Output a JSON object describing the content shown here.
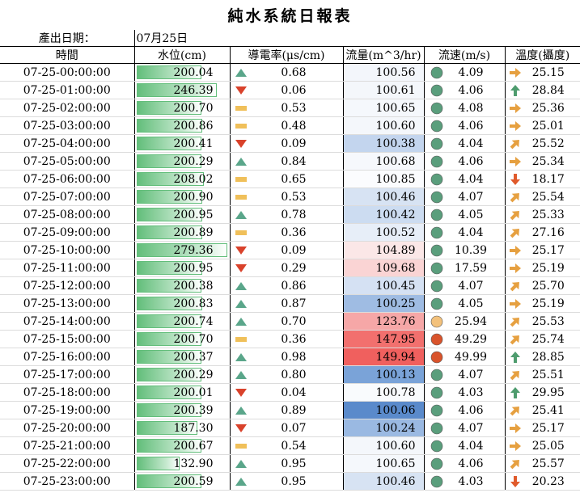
{
  "title": "純水系統日報表",
  "date_label": "產出日期：",
  "date_value": "07月25日",
  "headers": {
    "time": "時間",
    "level": "水位(cm)",
    "conductivity": "導電率(μs/cm)",
    "flow": "流量(m^3/hr)",
    "speed": "流速(m/s)",
    "temp": "溫度(攝度)"
  },
  "colors": {
    "level_bar": "#63be7b",
    "up": "#5aa68a",
    "down": "#d9422b",
    "neutral": "#f0c05a",
    "circle_green": "#5a9e7c",
    "circle_yellow": "#f3c17b",
    "circle_red": "#d9532b",
    "arrow_orange": "#e6a040",
    "arrow_green": "#4e9c6e",
    "arrow_red": "#e05a2b"
  },
  "rows": [
    {
      "time": "07-25-00:00:00",
      "level": "200.04",
      "cond": "0.68",
      "cond_icon": "up",
      "flow": "100.56",
      "flow_bg": "#f3f6fb",
      "speed": "4.09",
      "speed_icon": "green",
      "temp": "25.15",
      "temp_icon": "right"
    },
    {
      "time": "07-25-01:00:00",
      "level": "246.39",
      "cond": "0.06",
      "cond_icon": "down",
      "flow": "100.61",
      "flow_bg": "#f4f7fb",
      "speed": "4.06",
      "speed_icon": "green",
      "temp": "28.84",
      "temp_icon": "up"
    },
    {
      "time": "07-25-02:00:00",
      "level": "200.70",
      "cond": "0.53",
      "cond_icon": "neutral",
      "flow": "100.65",
      "flow_bg": "#f5f8fc",
      "speed": "4.08",
      "speed_icon": "green",
      "temp": "25.36",
      "temp_icon": "right"
    },
    {
      "time": "07-25-03:00:00",
      "level": "200.86",
      "cond": "0.48",
      "cond_icon": "neutral",
      "flow": "100.60",
      "flow_bg": "#f4f7fb",
      "speed": "4.06",
      "speed_icon": "green",
      "temp": "25.01",
      "temp_icon": "right"
    },
    {
      "time": "07-25-04:00:00",
      "level": "200.41",
      "cond": "0.09",
      "cond_icon": "down",
      "flow": "100.38",
      "flow_bg": "#c3d5ee",
      "speed": "4.04",
      "speed_icon": "green",
      "temp": "25.52",
      "temp_icon": "upright"
    },
    {
      "time": "07-25-05:00:00",
      "level": "200.29",
      "cond": "0.84",
      "cond_icon": "up",
      "flow": "100.68",
      "flow_bg": "#f6f8fc",
      "speed": "4.06",
      "speed_icon": "green",
      "temp": "25.34",
      "temp_icon": "right"
    },
    {
      "time": "07-25-06:00:00",
      "level": "208.02",
      "cond": "0.65",
      "cond_icon": "neutral",
      "flow": "100.85",
      "flow_bg": "#fbfcfe",
      "speed": "4.04",
      "speed_icon": "green",
      "temp": "18.17",
      "temp_icon": "down"
    },
    {
      "time": "07-25-07:00:00",
      "level": "200.90",
      "cond": "0.53",
      "cond_icon": "neutral",
      "flow": "100.46",
      "flow_bg": "#d7e3f3",
      "speed": "4.07",
      "speed_icon": "green",
      "temp": "25.54",
      "temp_icon": "upright"
    },
    {
      "time": "07-25-08:00:00",
      "level": "200.95",
      "cond": "0.78",
      "cond_icon": "up",
      "flow": "100.42",
      "flow_bg": "#ccdcf1",
      "speed": "4.05",
      "speed_icon": "green",
      "temp": "25.33",
      "temp_icon": "upright"
    },
    {
      "time": "07-25-09:00:00",
      "level": "200.89",
      "cond": "0.36",
      "cond_icon": "neutral",
      "flow": "100.52",
      "flow_bg": "#e7eef8",
      "speed": "4.04",
      "speed_icon": "green",
      "temp": "27.16",
      "temp_icon": "upright"
    },
    {
      "time": "07-25-10:00:00",
      "level": "279.36",
      "cond": "0.09",
      "cond_icon": "down",
      "flow": "104.89",
      "flow_bg": "#fbe7e7",
      "speed": "10.39",
      "speed_icon": "green",
      "temp": "25.17",
      "temp_icon": "right"
    },
    {
      "time": "07-25-11:00:00",
      "level": "200.95",
      "cond": "0.29",
      "cond_icon": "down",
      "flow": "109.68",
      "flow_bg": "#fad4d4",
      "speed": "17.59",
      "speed_icon": "green",
      "temp": "25.19",
      "temp_icon": "right"
    },
    {
      "time": "07-25-12:00:00",
      "level": "200.38",
      "cond": "0.86",
      "cond_icon": "up",
      "flow": "100.45",
      "flow_bg": "#d5e1f3",
      "speed": "4.07",
      "speed_icon": "green",
      "temp": "25.70",
      "temp_icon": "upright"
    },
    {
      "time": "07-25-13:00:00",
      "level": "200.83",
      "cond": "0.87",
      "cond_icon": "up",
      "flow": "100.25",
      "flow_bg": "#9fbce3",
      "speed": "4.05",
      "speed_icon": "green",
      "temp": "25.19",
      "temp_icon": "right"
    },
    {
      "time": "07-25-14:00:00",
      "level": "200.74",
      "cond": "0.70",
      "cond_icon": "up",
      "flow": "123.76",
      "flow_bg": "#f6a7a7",
      "speed": "25.94",
      "speed_icon": "yellow",
      "temp": "25.53",
      "temp_icon": "upright"
    },
    {
      "time": "07-25-15:00:00",
      "level": "200.70",
      "cond": "0.36",
      "cond_icon": "neutral",
      "flow": "147.95",
      "flow_bg": "#f2706e",
      "speed": "49.29",
      "speed_icon": "red",
      "temp": "25.74",
      "temp_icon": "upright"
    },
    {
      "time": "07-25-16:00:00",
      "level": "200.37",
      "cond": "0.98",
      "cond_icon": "up",
      "flow": "149.94",
      "flow_bg": "#f0605e",
      "speed": "49.99",
      "speed_icon": "red",
      "temp": "28.85",
      "temp_icon": "up"
    },
    {
      "time": "07-25-17:00:00",
      "level": "200.29",
      "cond": "0.80",
      "cond_icon": "up",
      "flow": "100.13",
      "flow_bg": "#7aa3d8",
      "speed": "4.07",
      "speed_icon": "green",
      "temp": "25.51",
      "temp_icon": "upright"
    },
    {
      "time": "07-25-18:00:00",
      "level": "200.01",
      "cond": "0.04",
      "cond_icon": "down",
      "flow": "100.78",
      "flow_bg": "#f9fbfd",
      "speed": "4.03",
      "speed_icon": "green",
      "temp": "29.95",
      "temp_icon": "up"
    },
    {
      "time": "07-25-19:00:00",
      "level": "200.39",
      "cond": "0.89",
      "cond_icon": "up",
      "flow": "100.06",
      "flow_bg": "#5a8acb",
      "speed": "4.06",
      "speed_icon": "green",
      "temp": "25.41",
      "temp_icon": "upright"
    },
    {
      "time": "07-25-20:00:00",
      "level": "187.30",
      "cond": "0.07",
      "cond_icon": "down",
      "flow": "100.24",
      "flow_bg": "#9ab9e2",
      "speed": "4.07",
      "speed_icon": "green",
      "temp": "25.17",
      "temp_icon": "right"
    },
    {
      "time": "07-25-21:00:00",
      "level": "200.67",
      "cond": "0.54",
      "cond_icon": "neutral",
      "flow": "100.60",
      "flow_bg": "#f4f7fb",
      "speed": "4.04",
      "speed_icon": "green",
      "temp": "25.05",
      "temp_icon": "right"
    },
    {
      "time": "07-25-22:00:00",
      "level": "132.90",
      "cond": "0.95",
      "cond_icon": "up",
      "flow": "100.65",
      "flow_bg": "#f5f8fc",
      "speed": "4.06",
      "speed_icon": "green",
      "temp": "25.57",
      "temp_icon": "upright"
    },
    {
      "time": "07-25-23:00:00",
      "level": "200.59",
      "cond": "0.95",
      "cond_icon": "up",
      "flow": "100.46",
      "flow_bg": "#d7e3f3",
      "speed": "4.03",
      "speed_icon": "green",
      "temp": "20.23",
      "temp_icon": "down"
    }
  ]
}
